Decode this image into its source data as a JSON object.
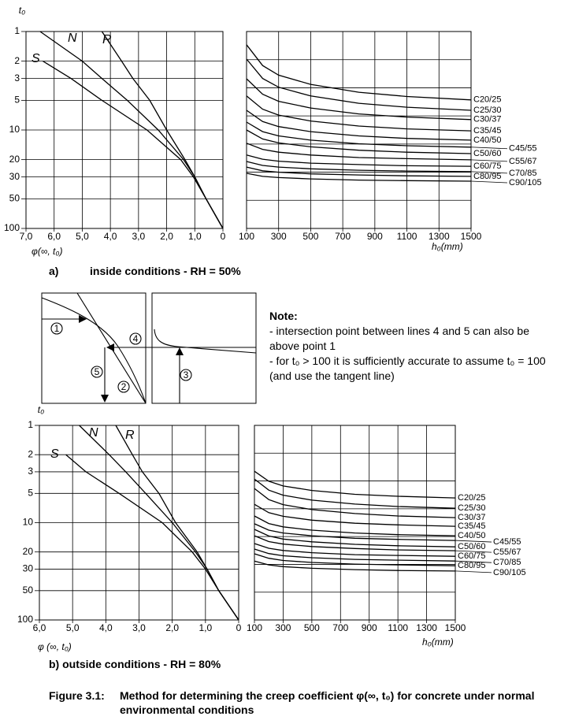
{
  "chart_data": [
    {
      "type": "line",
      "orientation": "horizontal",
      "yscale": "log",
      "y_inverted": true,
      "grid": true,
      "ylabel": "t₀",
      "xlabel": "φ(∞, t₀)",
      "y": [
        1,
        2,
        3,
        5,
        10,
        20,
        30,
        50,
        100
      ],
      "xlim": [
        7,
        0
      ],
      "ylim": [
        1,
        100
      ],
      "xticks": [
        {
          "value": 7,
          "label": "7,0"
        },
        {
          "value": 6,
          "label": "6,0"
        },
        {
          "value": 5,
          "label": "5,0"
        },
        {
          "value": 4,
          "label": "4,0"
        },
        {
          "value": 3,
          "label": "3,0"
        },
        {
          "value": 2,
          "label": "2,0"
        },
        {
          "value": 1,
          "label": "1,0"
        },
        0
      ],
      "yticks": [
        1,
        2,
        3,
        5,
        10,
        20,
        30,
        50,
        100
      ],
      "series": [
        {
          "name": "S",
          "color": "#000000",
          "values": [
            null,
            6.4,
            5.4,
            4.3,
            2.7,
            1.5,
            1.05,
            0.6,
            0
          ]
        },
        {
          "name": "N",
          "color": "#000000",
          "values": [
            6.5,
            5.0,
            4.3,
            3.4,
            2.3,
            1.4,
            1.0,
            0.6,
            0
          ]
        },
        {
          "name": "R",
          "color": "#000000",
          "values": [
            4.3,
            3.6,
            3.2,
            2.6,
            2.0,
            1.35,
            1.0,
            0.6,
            0
          ]
        }
      ]
    },
    {
      "type": "line",
      "grid": true,
      "show_ytick_labels": false,
      "xlabel": "h₀(mm)",
      "x": [
        100,
        200,
        300,
        500,
        800,
        1100,
        1500
      ],
      "xlim": [
        100,
        1500
      ],
      "ylim": [
        0,
        7
      ],
      "xticks": [
        100,
        300,
        500,
        700,
        900,
        1100,
        1300,
        1500
      ],
      "yticks": [
        0,
        1,
        2,
        3,
        4,
        5,
        6,
        7
      ],
      "series": [
        {
          "name": "C20/25",
          "color": "#000000",
          "values": [
            6.53,
            5.79,
            5.45,
            5.12,
            4.84,
            4.69,
            4.57
          ]
        },
        {
          "name": "C25/30",
          "color": "#000000",
          "values": [
            6.02,
            5.33,
            5.02,
            4.71,
            4.45,
            4.31,
            4.2
          ]
        },
        {
          "name": "C30/37",
          "color": "#000000",
          "values": [
            5.32,
            4.77,
            4.52,
            4.28,
            4.07,
            3.96,
            3.87
          ]
        },
        {
          "name": "C35/45",
          "color": "#000000",
          "values": [
            4.71,
            4.24,
            4.03,
            3.82,
            3.64,
            3.54,
            3.47
          ]
        },
        {
          "name": "C40/50",
          "color": "#000000",
          "values": [
            4.2,
            3.8,
            3.62,
            3.44,
            3.29,
            3.2,
            3.14
          ]
        },
        {
          "name": "C45/55",
          "color": "#000000",
          "values": [
            3.78,
            3.44,
            3.29,
            3.14,
            3.01,
            2.94,
            2.89
          ]
        },
        {
          "name": "C50/60",
          "color": "#000000",
          "values": [
            3.5,
            3.18,
            3.04,
            2.9,
            2.78,
            2.71,
            2.66
          ]
        },
        {
          "name": "C55/67",
          "color": "#000000",
          "values": [
            3.03,
            2.81,
            2.71,
            2.61,
            2.52,
            2.48,
            2.44
          ]
        },
        {
          "name": "C60/75",
          "color": "#000000",
          "values": [
            2.61,
            2.46,
            2.39,
            2.32,
            2.27,
            2.23,
            2.21
          ]
        },
        {
          "name": "C70/85",
          "color": "#000000",
          "values": [
            2.38,
            2.24,
            2.18,
            2.12,
            2.07,
            2.04,
            2.02
          ]
        },
        {
          "name": "C80/95",
          "color": "#000000",
          "values": [
            2.18,
            2.05,
            2.0,
            1.94,
            1.9,
            1.87,
            1.85
          ]
        },
        {
          "name": "C90/105",
          "color": "#000000",
          "values": [
            1.96,
            1.85,
            1.81,
            1.76,
            1.72,
            1.7,
            1.68
          ]
        }
      ]
    },
    {
      "type": "line",
      "orientation": "horizontal",
      "yscale": "log",
      "y_inverted": true,
      "grid": true,
      "ylabel": "t₀",
      "xlabel": "φ (∞, t₀)",
      "y": [
        1,
        2,
        3,
        5,
        10,
        20,
        30,
        50,
        100
      ],
      "xlim": [
        6,
        0
      ],
      "ylim": [
        1,
        100
      ],
      "xticks": [
        {
          "value": 6,
          "label": "6,0"
        },
        {
          "value": 5,
          "label": "5,0"
        },
        {
          "value": 4,
          "label": "4,0"
        },
        {
          "value": 3,
          "label": "3,0"
        },
        {
          "value": 2,
          "label": "2,0"
        },
        {
          "value": 1,
          "label": "1,0"
        },
        0
      ],
      "yticks": [
        1,
        2,
        3,
        5,
        10,
        20,
        30,
        50,
        100
      ],
      "series": [
        {
          "name": "S",
          "color": "#000000",
          "values": [
            null,
            5.2,
            4.6,
            3.6,
            2.3,
            1.4,
            1.0,
            0.6,
            0
          ]
        },
        {
          "name": "N",
          "color": "#000000",
          "values": [
            4.8,
            3.9,
            3.4,
            2.8,
            2.0,
            1.3,
            0.95,
            0.6,
            0
          ]
        },
        {
          "name": "R",
          "color": "#000000",
          "values": [
            3.7,
            3.2,
            2.9,
            2.4,
            1.9,
            1.25,
            0.95,
            0.6,
            0
          ]
        }
      ]
    },
    {
      "type": "line",
      "grid": true,
      "show_ytick_labels": false,
      "xlabel": "h₀(mm)",
      "x": [
        100,
        200,
        300,
        500,
        800,
        1100,
        1500
      ],
      "xlim": [
        100,
        1500
      ],
      "ylim": [
        0,
        7
      ],
      "xticks": [
        100,
        300,
        500,
        700,
        900,
        1100,
        1300,
        1500
      ],
      "yticks": [
        0,
        1,
        2,
        3,
        4,
        5,
        6,
        7
      ],
      "series": [
        {
          "name": "C20/25",
          "color": "#000000",
          "values": [
            5.35,
            4.99,
            4.82,
            4.66,
            4.52,
            4.45,
            4.39
          ]
        },
        {
          "name": "C25/30",
          "color": "#000000",
          "values": [
            5.07,
            4.67,
            4.49,
            4.31,
            4.17,
            4.08,
            4.02
          ]
        },
        {
          "name": "C30/37",
          "color": "#000000",
          "values": [
            4.73,
            4.33,
            4.15,
            3.97,
            3.83,
            3.74,
            3.68
          ]
        },
        {
          "name": "C35/45",
          "color": "#000000",
          "values": [
            4.16,
            3.86,
            3.73,
            3.59,
            3.48,
            3.42,
            3.37
          ]
        },
        {
          "name": "C40/50",
          "color": "#000000",
          "values": [
            3.74,
            3.47,
            3.35,
            3.23,
            3.13,
            3.07,
            3.03
          ]
        },
        {
          "name": "C45/55",
          "color": "#000000",
          "values": [
            3.46,
            3.23,
            3.13,
            3.03,
            2.94,
            2.9,
            2.86
          ]
        },
        {
          "name": "C50/60",
          "color": "#000000",
          "values": [
            3.26,
            3.02,
            2.91,
            2.81,
            2.72,
            2.67,
            2.63
          ]
        },
        {
          "name": "C55/67",
          "color": "#000000",
          "values": [
            3.03,
            2.82,
            2.73,
            2.64,
            2.57,
            2.52,
            2.49
          ]
        },
        {
          "name": "C60/75",
          "color": "#000000",
          "values": [
            2.75,
            2.58,
            2.5,
            2.42,
            2.35,
            2.32,
            2.29
          ]
        },
        {
          "name": "C70/85",
          "color": "#000000",
          "values": [
            2.55,
            2.39,
            2.31,
            2.24,
            2.18,
            2.15,
            2.12
          ]
        },
        {
          "name": "C80/95",
          "color": "#000000",
          "values": [
            2.38,
            2.22,
            2.14,
            2.07,
            2.01,
            1.98,
            1.95
          ]
        },
        {
          "name": "C90/105",
          "color": "#000000",
          "values": [
            2.12,
            1.98,
            1.92,
            1.86,
            1.81,
            1.78,
            1.76
          ]
        }
      ]
    }
  ],
  "panel_a": {
    "letter": "a)",
    "caption": "inside conditions -  RH = 50%"
  },
  "panel_b": {
    "caption": "b) outside conditions - RH = 80%"
  },
  "sketch": {
    "markers": [
      "1",
      "2",
      "3",
      "4",
      "5"
    ]
  },
  "note": {
    "title": "Note:",
    "items": [
      "-  intersection point between lines 4 and 5 can also be above point 1",
      "- for t₀ > 100 it is sufficiently accurate to assume t₀ = 100 (and use the tangent line)"
    ]
  },
  "figure": {
    "label": "Figure 3.1:",
    "caption": "Method for determining the creep coefficient φ(∞, t₀) for concrete under normal environmental conditions"
  }
}
